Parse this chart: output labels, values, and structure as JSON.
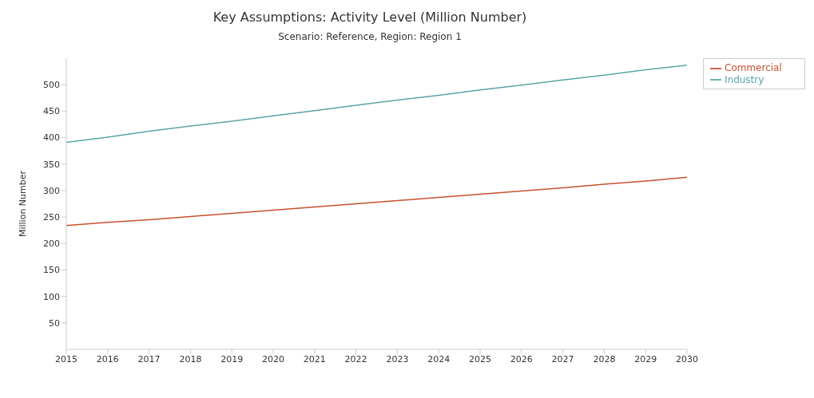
{
  "chart_data": {
    "type": "line",
    "title": "Key Assumptions: Activity Level (Million Number)",
    "subtitle": "Scenario: Reference, Region: Region 1",
    "ylabel": "Million Number",
    "x": [
      2015,
      2016,
      2017,
      2018,
      2019,
      2020,
      2021,
      2022,
      2023,
      2024,
      2025,
      2026,
      2027,
      2028,
      2029,
      2030
    ],
    "series": [
      {
        "name": "Commercial",
        "color": "#c8502d",
        "values": [
          234,
          240,
          245,
          251,
          257,
          263,
          269,
          275,
          281,
          287,
          293,
          299,
          305,
          312,
          318,
          325
        ]
      },
      {
        "name": "Industry",
        "color": "#5aa5a5",
        "values": [
          391,
          401,
          412,
          422,
          431,
          441,
          451,
          461,
          471,
          480,
          490,
          499,
          509,
          518,
          528,
          537
        ]
      }
    ],
    "xlim": [
      2015,
      2030
    ],
    "xticks": [
      2015,
      2016,
      2017,
      2018,
      2019,
      2020,
      2021,
      2022,
      2023,
      2024,
      2025,
      2026,
      2027,
      2028,
      2029,
      2030
    ],
    "ylim": [
      0,
      550
    ],
    "yticks": [
      50,
      100,
      150,
      200,
      250,
      300,
      350,
      400,
      450,
      500
    ],
    "grid": false,
    "legend": "top right",
    "marker": "none",
    "line_style": "solid"
  }
}
